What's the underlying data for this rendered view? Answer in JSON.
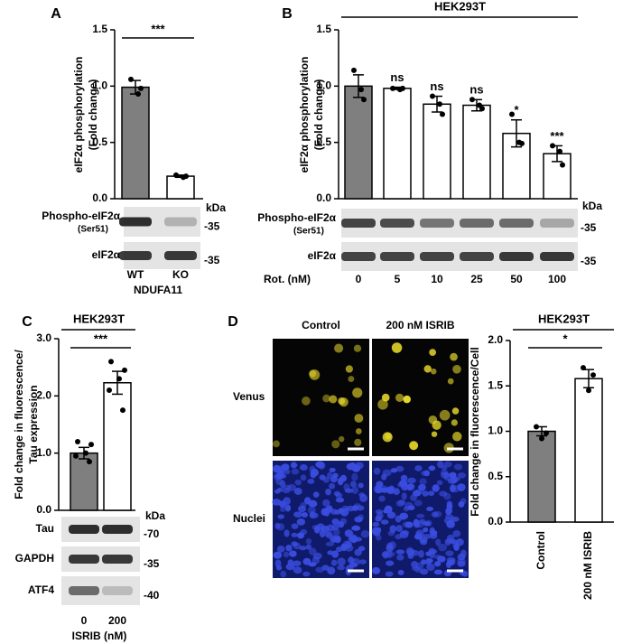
{
  "chart_data": [
    {
      "type": "bar",
      "panel": "A",
      "ylabel": [
        "eIF2α phosphorylation",
        "(Fold change)"
      ],
      "categories": [
        "WT",
        "KO"
      ],
      "group_label": "NDUFA11",
      "values": [
        0.99,
        0.2
      ],
      "errors": [
        0.06,
        0.01
      ],
      "points": [
        [
          1.06,
          0.93,
          0.98
        ],
        [
          0.21,
          0.19,
          0.2
        ]
      ],
      "colors": [
        "#7f7f7f",
        "#ffffff"
      ],
      "ylim": [
        0,
        1.5
      ],
      "yticks": [
        {
          "value": 0,
          "label": "0.0"
        },
        0.5,
        {
          "value": 1,
          "label": "1.0"
        },
        1.5
      ],
      "significance": "***"
    },
    {
      "type": "bar",
      "panel": "B",
      "title": "HEK293T",
      "ylabel": [
        "eIF2α phosphorylation",
        "(Fold change)"
      ],
      "categories": [
        "0",
        "5",
        "10",
        "25",
        "50",
        "100"
      ],
      "xlabel": "Rot. (nM)",
      "values": [
        1.0,
        0.98,
        0.84,
        0.83,
        0.58,
        0.4
      ],
      "errors": [
        0.1,
        0.01,
        0.07,
        0.05,
        0.12,
        0.07
      ],
      "points": [
        [
          1.14,
          0.97,
          0.88
        ],
        [
          0.98,
          0.97,
          0.98
        ],
        [
          0.91,
          0.84,
          0.75
        ],
        [
          0.88,
          0.83,
          0.8
        ],
        [
          0.75,
          0.5,
          0.49
        ],
        [
          0.47,
          0.42,
          0.3
        ]
      ],
      "annotations": [
        null,
        "ns",
        "ns",
        "ns",
        "*",
        "***"
      ],
      "colors": [
        "#7f7f7f",
        "#ffffff",
        "#ffffff",
        "#ffffff",
        "#ffffff",
        "#ffffff"
      ],
      "ylim": [
        0,
        1.5
      ],
      "yticks": [
        {
          "value": 0,
          "label": "0.0"
        },
        0.5,
        {
          "value": 1,
          "label": "1.0"
        },
        1.5
      ]
    },
    {
      "type": "bar",
      "panel": "C",
      "title": "HEK293T",
      "ylabel": [
        "Fold change in fluorescence/",
        "Tau expression"
      ],
      "categories": [
        "0",
        "200"
      ],
      "xlabel": "ISRIB (nM)",
      "values": [
        1.0,
        2.23
      ],
      "errors": [
        0.1,
        0.2
      ],
      "points": [
        [
          1.2,
          1.15,
          1.0,
          0.95,
          0.85
        ],
        [
          2.6,
          2.45,
          2.3,
          2.1,
          1.75
        ]
      ],
      "colors": [
        "#7f7f7f",
        "#ffffff"
      ],
      "ylim": [
        0,
        3
      ],
      "yticks": [
        {
          "value": 0,
          "label": "0.0"
        },
        {
          "value": 1,
          "label": "1.0"
        },
        {
          "value": 2,
          "label": "2.0"
        },
        {
          "value": 3,
          "label": "3.0"
        }
      ],
      "significance": "***"
    },
    {
      "type": "bar",
      "title": "HEK293T",
      "ylabel": [
        "Fold change in fluorescence/Cell"
      ],
      "categories": [
        "Control",
        "200 nM ISRIB"
      ],
      "values": [
        1.0,
        1.58
      ],
      "errors": [
        0.05,
        0.1
      ],
      "points": [
        [
          1.05,
          0.98,
          0.92
        ],
        [
          1.7,
          1.62,
          1.45
        ]
      ],
      "colors": [
        "#7f7f7f",
        "#ffffff"
      ],
      "ylim": [
        0,
        2
      ],
      "yticks": [
        {
          "value": 0,
          "label": "0.0"
        },
        0.5,
        {
          "value": 1,
          "label": "1.0"
        },
        1.5,
        {
          "value": 2,
          "label": "2.0"
        }
      ],
      "significance": "*"
    }
  ],
  "blots": [
    {
      "unit": "kDa",
      "rows": [
        {
          "label": "Phospho-eIF2α",
          "sublabel": "(Ser51)",
          "marker": "-35"
        },
        {
          "label": "eIF2α",
          "marker": "-35"
        }
      ]
    },
    {
      "unit": "kDa",
      "rows": [
        {
          "label": "Phospho-eIF2α",
          "sublabel": "(Ser51)",
          "marker": "-35"
        },
        {
          "label": "eIF2α",
          "marker": "-35"
        }
      ]
    },
    {
      "unit": "kDa",
      "rows": [
        {
          "label": "Tau",
          "marker": "-70"
        },
        {
          "label": "GAPDH",
          "marker": "-35"
        },
        {
          "label": "ATF4",
          "marker": "-40"
        }
      ]
    }
  ],
  "images": {
    "panel": "D",
    "columns": [
      "Control",
      "200 nM ISRIB"
    ],
    "rows": [
      "Venus",
      "Nuclei"
    ]
  }
}
